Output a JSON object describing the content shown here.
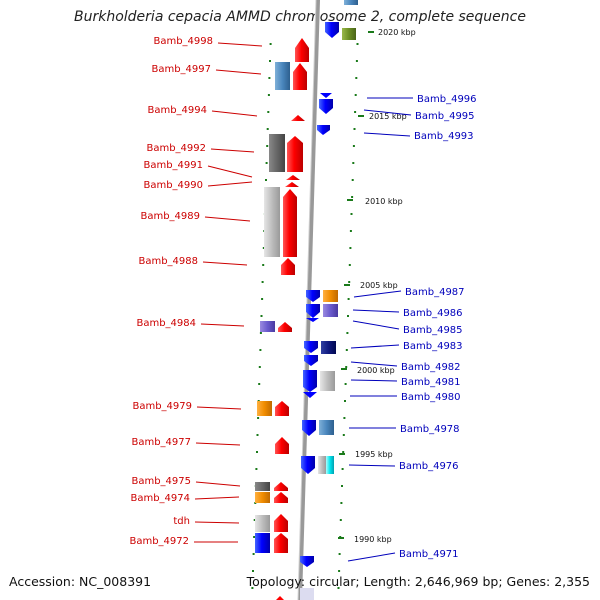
{
  "title": "Burkholderia cepacia AMMD chromosome 2, complete sequence",
  "accession": "Accession: NC_008391",
  "topology": "Topology: circular; Length: 2,646,969 bp; Genes: 2,355",
  "colors": {
    "left_label": "#cc0000",
    "right_label": "#0000bb",
    "backbone": "#999999",
    "tick": "#1a7a1a"
  },
  "scale_labels": [
    "2020 kbp",
    "2015 kbp",
    "2010 kbp",
    "2005 kbp",
    "2000 kbp",
    "1995 kbp",
    "1990 kbp"
  ],
  "left_genes": [
    "Bamb_4998",
    "Bamb_4997",
    "Bamb_4994",
    "Bamb_4992",
    "Bamb_4991",
    "Bamb_4990",
    "Bamb_4989",
    "Bamb_4988",
    "Bamb_4984",
    "Bamb_4979",
    "Bamb_4977",
    "Bamb_4975",
    "Bamb_4974",
    "tdh",
    "Bamb_4972"
  ],
  "right_genes": [
    "Bamb_4996",
    "Bamb_4995",
    "Bamb_4993",
    "Bamb_4987",
    "Bamb_4986",
    "Bamb_4985",
    "Bamb_4983",
    "Bamb_4982",
    "Bamb_4981",
    "Bamb_4980",
    "Bamb_4978",
    "Bamb_4976",
    "Bamb_4971"
  ]
}
